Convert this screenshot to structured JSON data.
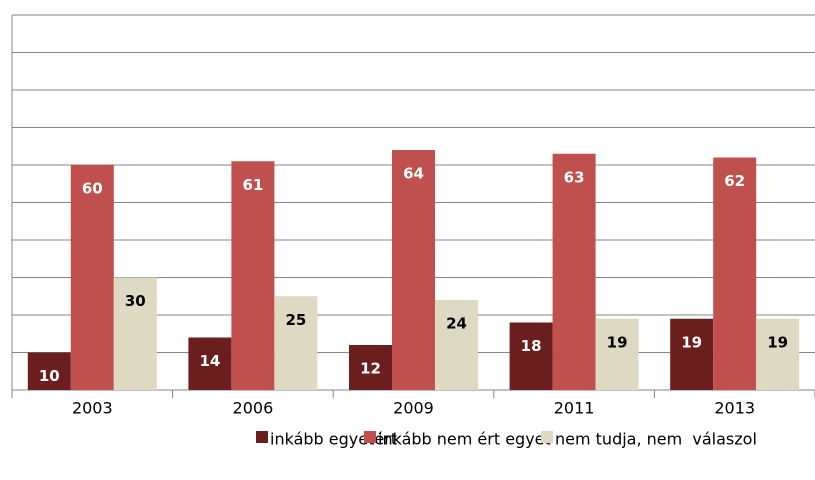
{
  "chart_data": {
    "type": "bar",
    "categories": [
      "2003",
      "2006",
      "2009",
      "2011",
      "2013"
    ],
    "series": [
      {
        "name": "inkább egyetért",
        "color": "#6a1f1e",
        "values": [
          10,
          14,
          12,
          18,
          19
        ]
      },
      {
        "name": "inkább nem ért egyet",
        "color": "#c0504d",
        "values": [
          60,
          61,
          64,
          63,
          62
        ]
      },
      {
        "name": "nem tudja, nem  válaszol",
        "color": "#ddd9c3",
        "values": [
          30,
          25,
          24,
          19,
          19
        ]
      }
    ],
    "ylim": [
      0,
      100
    ],
    "yticks": [
      0,
      10,
      20,
      30,
      40,
      50,
      60,
      70,
      80,
      90,
      100
    ],
    "grid": true,
    "legend": "bottom"
  }
}
